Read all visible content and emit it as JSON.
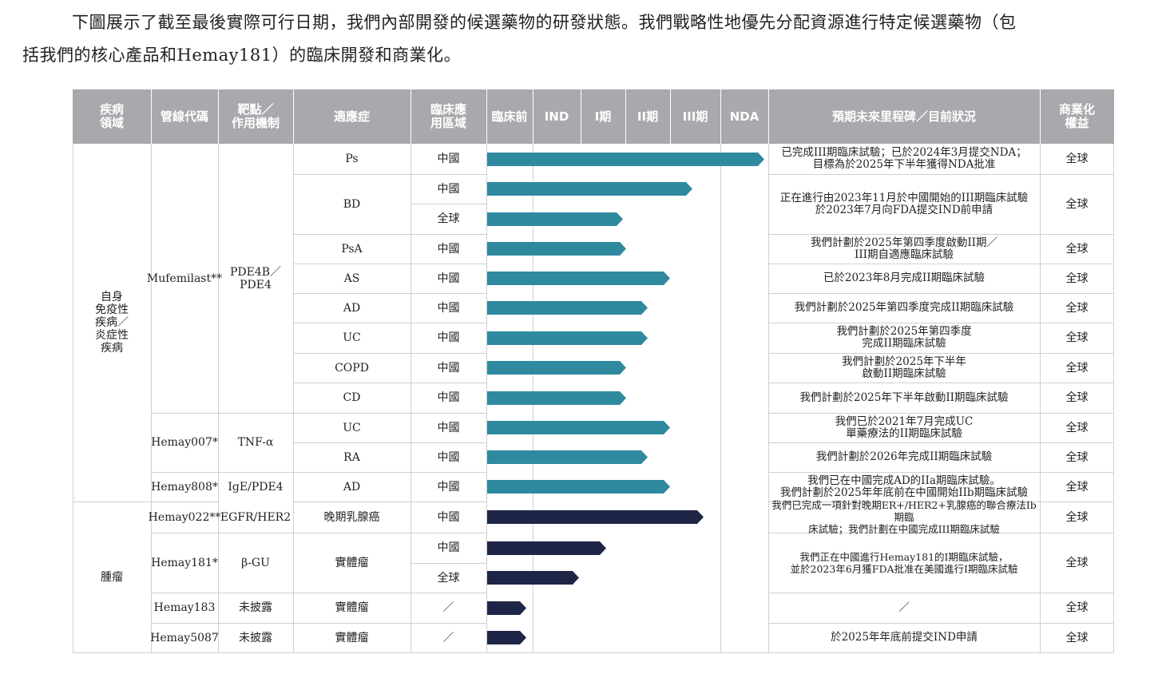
{
  "intro": {
    "line1": "下圖展示了截至最後實際可行日期，我們內部開發的候選藥物的研發狀態。我們戰略性地優先分配資源進行特定候選藥物（包",
    "line2": "括我們的核心產品和Hemay181）的臨床開發和商業化。"
  },
  "colors": {
    "header_bg": "#a8a9ad",
    "teal": "#2f8aa0",
    "navy": "#1f2547"
  },
  "headers": {
    "area": "疾病\n領域",
    "code": "管線代碼",
    "target": "靶點／\n作用機制",
    "indication": "適應症",
    "region": "臨床應\n用區域",
    "preclinical": "臨床前",
    "ind": "IND",
    "p1": "I期",
    "p2": "II期",
    "p3": "III期",
    "nda": "NDA",
    "milestone": "預期未來里程碑／目前狀況",
    "rights": "商業化\n權益"
  },
  "areas": {
    "autoimmune": "自身\n免疫性\n疾病／\n炎症性\n疾病",
    "oncology": "腫瘤"
  },
  "drugs": {
    "mufemilast": {
      "code": "Mufemilast**",
      "target": "PDE4B／\nPDE4"
    },
    "hemay007": {
      "code": "Hemay007*",
      "target": "TNF-α"
    },
    "hemay808": {
      "code": "Hemay808*",
      "target": "IgE/PDE4"
    },
    "hemay022": {
      "code": "Hemay022**",
      "target": "EGFR/HER2"
    },
    "hemay181": {
      "code": "Hemay181*",
      "target": "β-GU"
    },
    "hemay183": {
      "code": "Hemay183",
      "target": "未披露"
    },
    "hemay5087": {
      "code": "Hemay5087",
      "target": "未披露"
    }
  },
  "indications": {
    "ps": "Ps",
    "bd": "BD",
    "psa": "PsA",
    "as": "AS",
    "ad": "AD",
    "uc": "UC",
    "copd": "COPD",
    "cd": "CD",
    "uc2": "UC",
    "ra": "RA",
    "ad2": "AD",
    "breast": "晚期乳腺癌",
    "solid181": "實體瘤",
    "solid183": "實體瘤",
    "solid5087": "實體瘤"
  },
  "rows": [
    {
      "region": "中國",
      "progress": 1.0,
      "color": "teal"
    },
    {
      "region": "中國",
      "progress": 0.74,
      "color": "teal"
    },
    {
      "region": "全球",
      "progress": 0.49,
      "color": "teal"
    },
    {
      "region": "中國",
      "progress": 0.5,
      "color": "teal"
    },
    {
      "region": "中國",
      "progress": 0.66,
      "color": "teal"
    },
    {
      "region": "中國",
      "progress": 0.58,
      "color": "teal"
    },
    {
      "region": "中國",
      "progress": 0.58,
      "color": "teal"
    },
    {
      "region": "中國",
      "progress": 0.5,
      "color": "teal"
    },
    {
      "region": "中國",
      "progress": 0.5,
      "color": "teal"
    },
    {
      "region": "中國",
      "progress": 0.66,
      "color": "teal"
    },
    {
      "region": "中國",
      "progress": 0.58,
      "color": "teal"
    },
    {
      "region": "中國",
      "progress": 0.66,
      "color": "teal"
    },
    {
      "region": "中國",
      "progress": 0.78,
      "color": "navy"
    },
    {
      "region": "中國",
      "progress": 0.43,
      "color": "navy"
    },
    {
      "region": "全球",
      "progress": 0.33,
      "color": "navy"
    },
    {
      "region": "／",
      "progress": 0.14,
      "color": "navy"
    },
    {
      "region": "／",
      "progress": 0.14,
      "color": "navy"
    }
  ],
  "milestones": {
    "ps": "已完成III期臨床試驗；已於2024年3月提交NDA；\n目標為於2025年下半年獲得NDA批准",
    "bd": "正在進行由2023年11月於中國開始的III期臨床試驗\n於2023年7月向FDA提交IND前申請",
    "psa": "我們計劃於2025年第四季度啟動II期／\nIII期自適應臨床試驗",
    "as": "已於2023年8月完成II期臨床試驗",
    "ad": "我們計劃於2025年第四季度完成II期臨床試驗",
    "uc": "我們計劃於2025年第四季度\n完成II期臨床試驗",
    "copd": "我們計劃於2025年下半年\n啟動II期臨床試驗",
    "cd": "我們計劃於2025年下半年啟動II期臨床試驗",
    "uc2": "我們已於2021年7月完成UC\n單藥療法的II期臨床試驗",
    "ra": "我們計劃於2026年完成II期臨床試驗",
    "ad2": "我們已在中國完成AD的IIa期臨床試驗。\n我們計劃於2025年年底前在中國開始IIb期臨床試驗",
    "breast": "我們已完成一項針對晚期ER+/HER2+乳腺癌的聯合療法Ib期臨\n床試驗；我們計劃在中國完成III期臨床試驗",
    "h181": "我們正在中國進行Hemay181的I期臨床試驗，\n並於2023年6月獲FDA批准在美國進行I期臨床試驗",
    "h183": "／",
    "h5087": "於2025年年底前提交IND申請"
  },
  "rights": [
    "全球",
    "全球",
    "全球",
    "全球",
    "全球",
    "全球",
    "全球",
    "全球",
    "全球",
    "全球",
    "全球",
    "全球",
    "全球",
    "全球",
    "全球"
  ]
}
